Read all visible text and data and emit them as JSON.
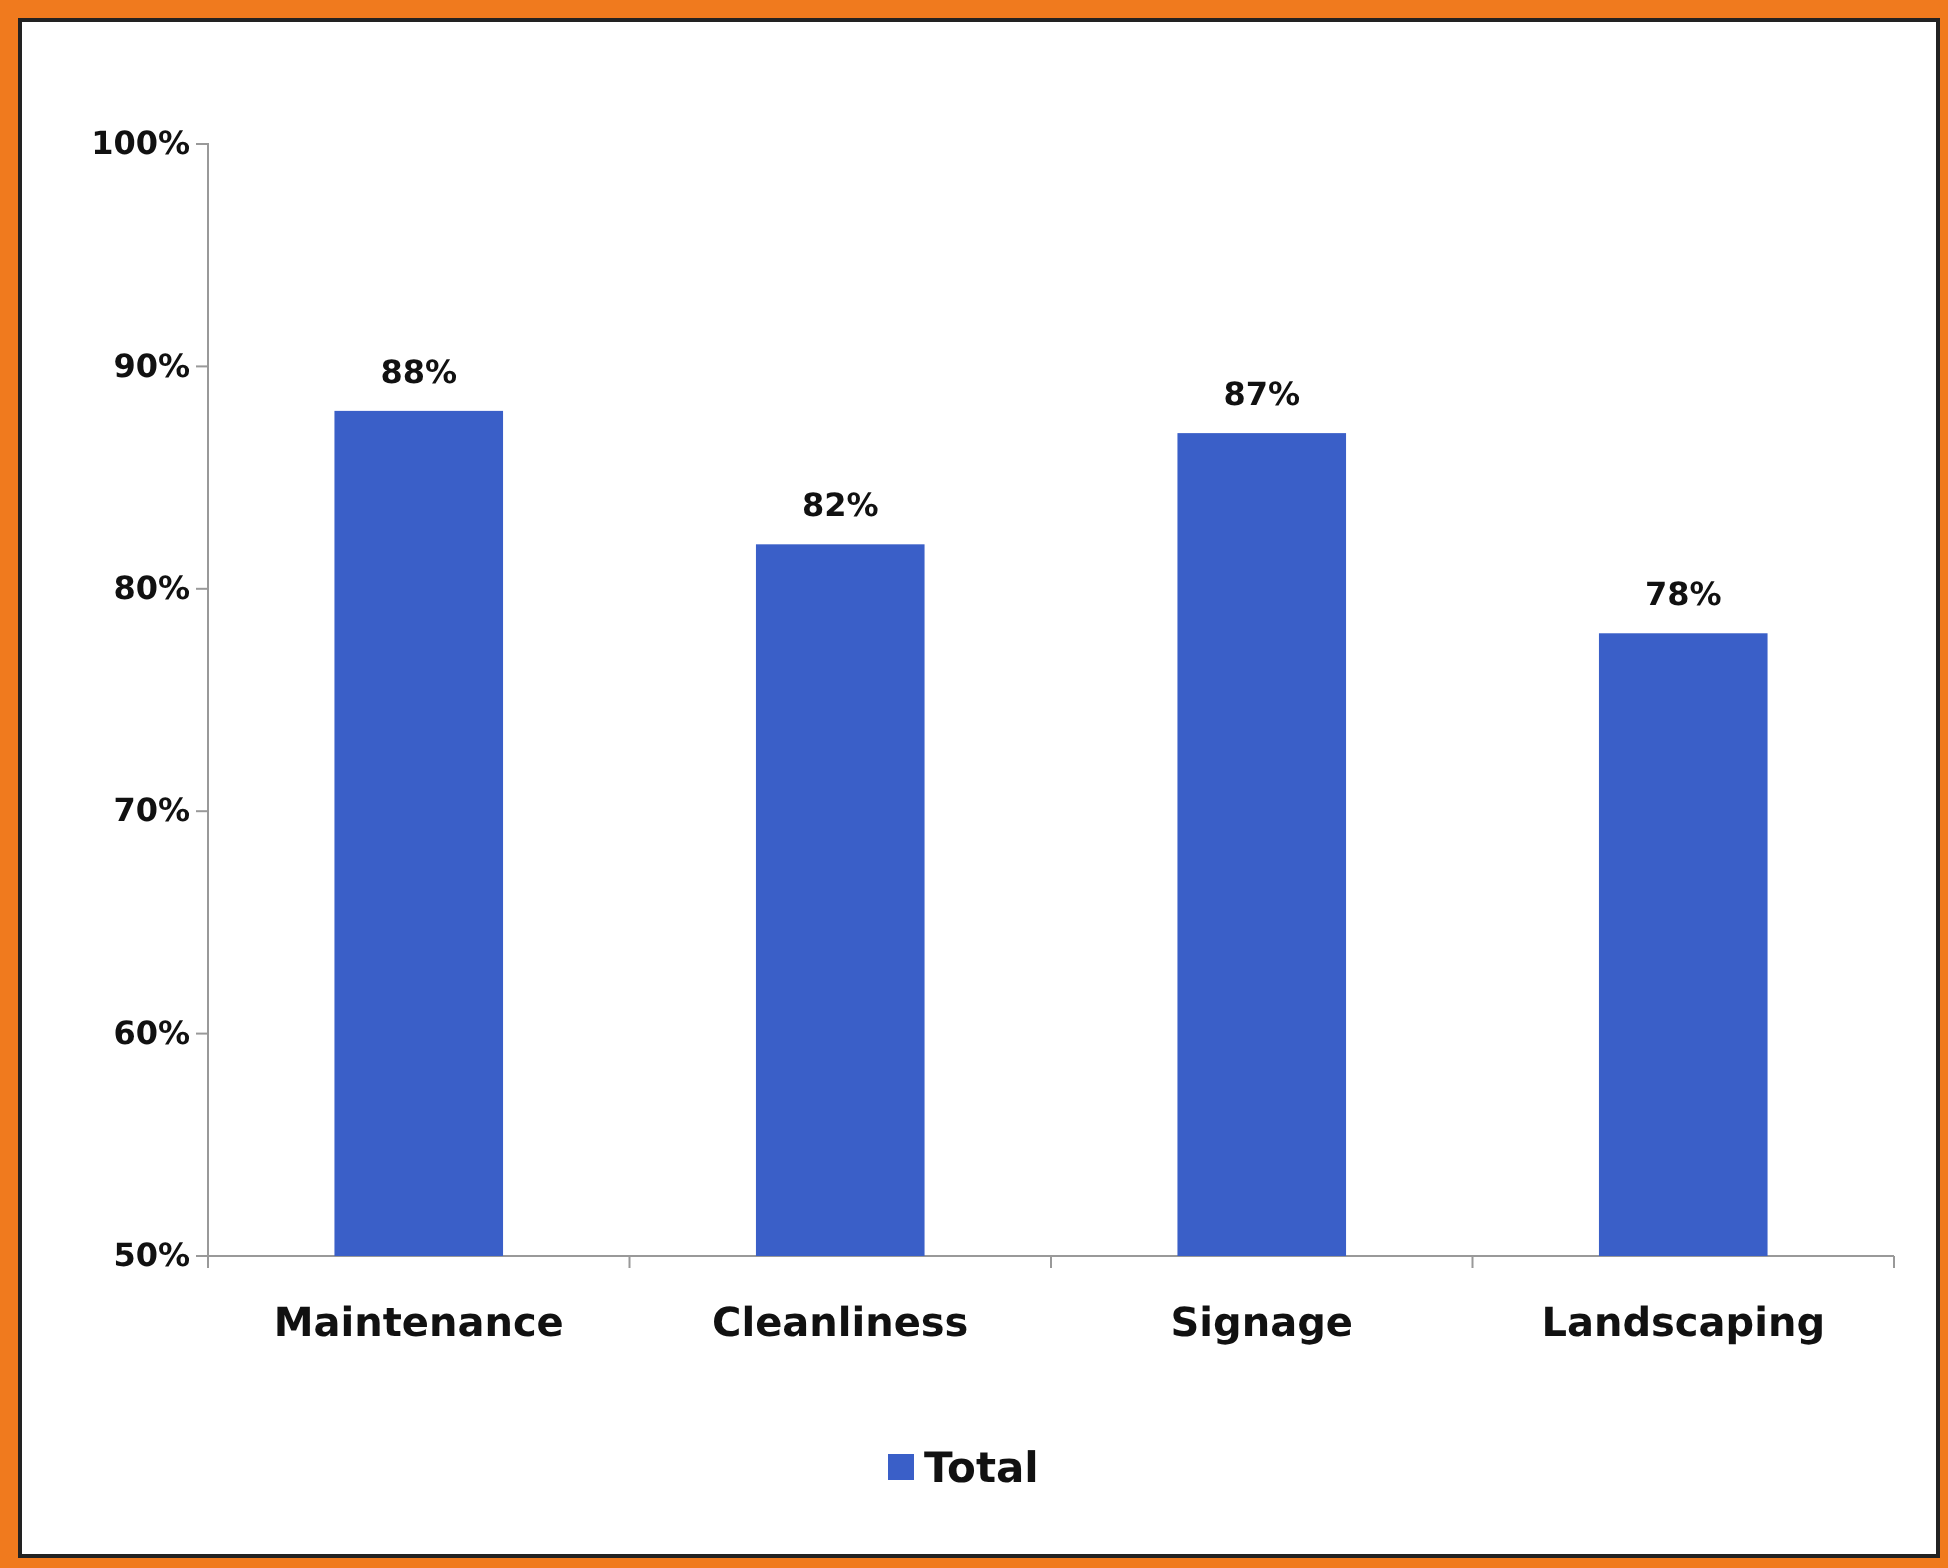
{
  "chart_data": {
    "type": "bar",
    "categories": [
      "Maintenance",
      "Cleanliness",
      "Signage",
      "Landscaping"
    ],
    "series": [
      {
        "name": "Total",
        "color": "#3a5fc8",
        "values": [
          88,
          82,
          87,
          78
        ]
      }
    ],
    "value_labels": [
      "88%",
      "82%",
      "87%",
      "78%"
    ],
    "ylim": [
      50,
      100
    ],
    "yticks": [
      {
        "value": 50,
        "label": "50%"
      },
      {
        "value": 60,
        "label": "60%"
      },
      {
        "value": 70,
        "label": "70%"
      },
      {
        "value": 80,
        "label": "80%"
      },
      {
        "value": 90,
        "label": "90%"
      },
      {
        "value": 100,
        "label": "100%"
      }
    ],
    "grid": false,
    "legend": "bottom"
  }
}
